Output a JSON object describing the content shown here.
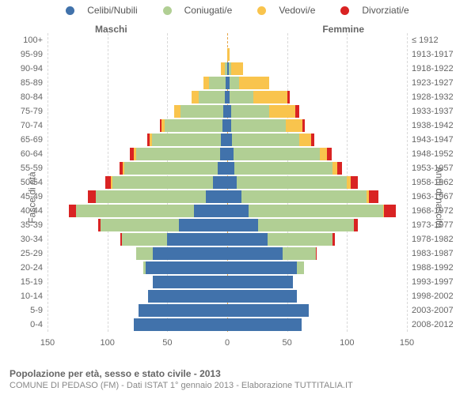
{
  "type": "population-pyramid",
  "colors": {
    "celibi": "#4172ab",
    "coniugati": "#b1cf94",
    "vedovi": "#f9c44d",
    "divorziati": "#d92323",
    "grid": "#d9d9d9",
    "center": "#e6a64a",
    "text": "#666666",
    "background": "#ffffff"
  },
  "legend": [
    {
      "key": "celibi",
      "label": "Celibi/Nubili"
    },
    {
      "key": "coniugati",
      "label": "Coniugati/e"
    },
    {
      "key": "vedovi",
      "label": "Vedovi/e"
    },
    {
      "key": "divorziati",
      "label": "Divorziati/e"
    }
  ],
  "gender": {
    "left": "Maschi",
    "right": "Femmine"
  },
  "yaxis_left_title": "Fasce di età",
  "yaxis_right_title": "Anni di nascita",
  "xaxis": {
    "min": -150,
    "max": 150,
    "ticks": [
      -150,
      -100,
      -50,
      0,
      50,
      100,
      150
    ],
    "tickLabels": [
      "150",
      "100",
      "50",
      "0",
      "50",
      "100",
      "150"
    ]
  },
  "footer": {
    "title": "Popolazione per età, sesso e stato civile - 2013",
    "subtitle": "COMUNE DI PEDASO (FM) - Dati ISTAT 1° gennaio 2013 - Elaborazione TUTTITALIA.IT"
  },
  "rows": [
    {
      "age": "100+",
      "year": "≤ 1912",
      "m": {
        "c": 0,
        "o": 0,
        "v": 0,
        "d": 0
      },
      "f": {
        "c": 0,
        "o": 0,
        "v": 0,
        "d": 0
      }
    },
    {
      "age": "95-99",
      "year": "1913-1917",
      "m": {
        "c": 0,
        "o": 0,
        "v": 0,
        "d": 0
      },
      "f": {
        "c": 0,
        "o": 0,
        "v": 2,
        "d": 0
      }
    },
    {
      "age": "90-94",
      "year": "1918-1922",
      "m": {
        "c": 0,
        "o": 2,
        "v": 3,
        "d": 0
      },
      "f": {
        "c": 1,
        "o": 2,
        "v": 10,
        "d": 0
      }
    },
    {
      "age": "85-89",
      "year": "1923-1927",
      "m": {
        "c": 1,
        "o": 14,
        "v": 5,
        "d": 0
      },
      "f": {
        "c": 2,
        "o": 8,
        "v": 25,
        "d": 0
      }
    },
    {
      "age": "80-84",
      "year": "1928-1932",
      "m": {
        "c": 2,
        "o": 22,
        "v": 6,
        "d": 0
      },
      "f": {
        "c": 2,
        "o": 20,
        "v": 28,
        "d": 2
      }
    },
    {
      "age": "75-79",
      "year": "1933-1937",
      "m": {
        "c": 3,
        "o": 36,
        "v": 5,
        "d": 0
      },
      "f": {
        "c": 3,
        "o": 32,
        "v": 22,
        "d": 3
      }
    },
    {
      "age": "70-74",
      "year": "1938-1942",
      "m": {
        "c": 4,
        "o": 48,
        "v": 3,
        "d": 1
      },
      "f": {
        "c": 3,
        "o": 46,
        "v": 14,
        "d": 2
      }
    },
    {
      "age": "65-69",
      "year": "1943-1947",
      "m": {
        "c": 5,
        "o": 58,
        "v": 2,
        "d": 2
      },
      "f": {
        "c": 4,
        "o": 56,
        "v": 10,
        "d": 3
      }
    },
    {
      "age": "60-64",
      "year": "1948-1952",
      "m": {
        "c": 6,
        "o": 70,
        "v": 2,
        "d": 3
      },
      "f": {
        "c": 5,
        "o": 72,
        "v": 6,
        "d": 4
      }
    },
    {
      "age": "55-59",
      "year": "1953-1957",
      "m": {
        "c": 8,
        "o": 78,
        "v": 1,
        "d": 3
      },
      "f": {
        "c": 6,
        "o": 82,
        "v": 4,
        "d": 4
      }
    },
    {
      "age": "50-54",
      "year": "1958-1962",
      "m": {
        "c": 12,
        "o": 84,
        "v": 1,
        "d": 5
      },
      "f": {
        "c": 8,
        "o": 92,
        "v": 3,
        "d": 6
      }
    },
    {
      "age": "45-49",
      "year": "1963-1967",
      "m": {
        "c": 18,
        "o": 92,
        "v": 0,
        "d": 6
      },
      "f": {
        "c": 12,
        "o": 104,
        "v": 2,
        "d": 8
      }
    },
    {
      "age": "40-44",
      "year": "1968-1972",
      "m": {
        "c": 28,
        "o": 98,
        "v": 0,
        "d": 6
      },
      "f": {
        "c": 18,
        "o": 112,
        "v": 1,
        "d": 10
      }
    },
    {
      "age": "35-39",
      "year": "1973-1977",
      "m": {
        "c": 40,
        "o": 66,
        "v": 0,
        "d": 2
      },
      "f": {
        "c": 26,
        "o": 80,
        "v": 0,
        "d": 3
      }
    },
    {
      "age": "30-34",
      "year": "1978-1982",
      "m": {
        "c": 50,
        "o": 38,
        "v": 0,
        "d": 1
      },
      "f": {
        "c": 34,
        "o": 54,
        "v": 0,
        "d": 2
      }
    },
    {
      "age": "25-29",
      "year": "1983-1987",
      "m": {
        "c": 62,
        "o": 14,
        "v": 0,
        "d": 0
      },
      "f": {
        "c": 46,
        "o": 28,
        "v": 0,
        "d": 1
      }
    },
    {
      "age": "20-24",
      "year": "1988-1992",
      "m": {
        "c": 68,
        "o": 2,
        "v": 0,
        "d": 0
      },
      "f": {
        "c": 58,
        "o": 6,
        "v": 0,
        "d": 0
      }
    },
    {
      "age": "15-19",
      "year": "1993-1997",
      "m": {
        "c": 62,
        "o": 0,
        "v": 0,
        "d": 0
      },
      "f": {
        "c": 55,
        "o": 0,
        "v": 0,
        "d": 0
      }
    },
    {
      "age": "10-14",
      "year": "1998-2002",
      "m": {
        "c": 66,
        "o": 0,
        "v": 0,
        "d": 0
      },
      "f": {
        "c": 58,
        "o": 0,
        "v": 0,
        "d": 0
      }
    },
    {
      "age": "5-9",
      "year": "2003-2007",
      "m": {
        "c": 74,
        "o": 0,
        "v": 0,
        "d": 0
      },
      "f": {
        "c": 68,
        "o": 0,
        "v": 0,
        "d": 0
      }
    },
    {
      "age": "0-4",
      "year": "2008-2012",
      "m": {
        "c": 78,
        "o": 0,
        "v": 0,
        "d": 0
      },
      "f": {
        "c": 62,
        "o": 0,
        "v": 0,
        "d": 0
      }
    }
  ]
}
